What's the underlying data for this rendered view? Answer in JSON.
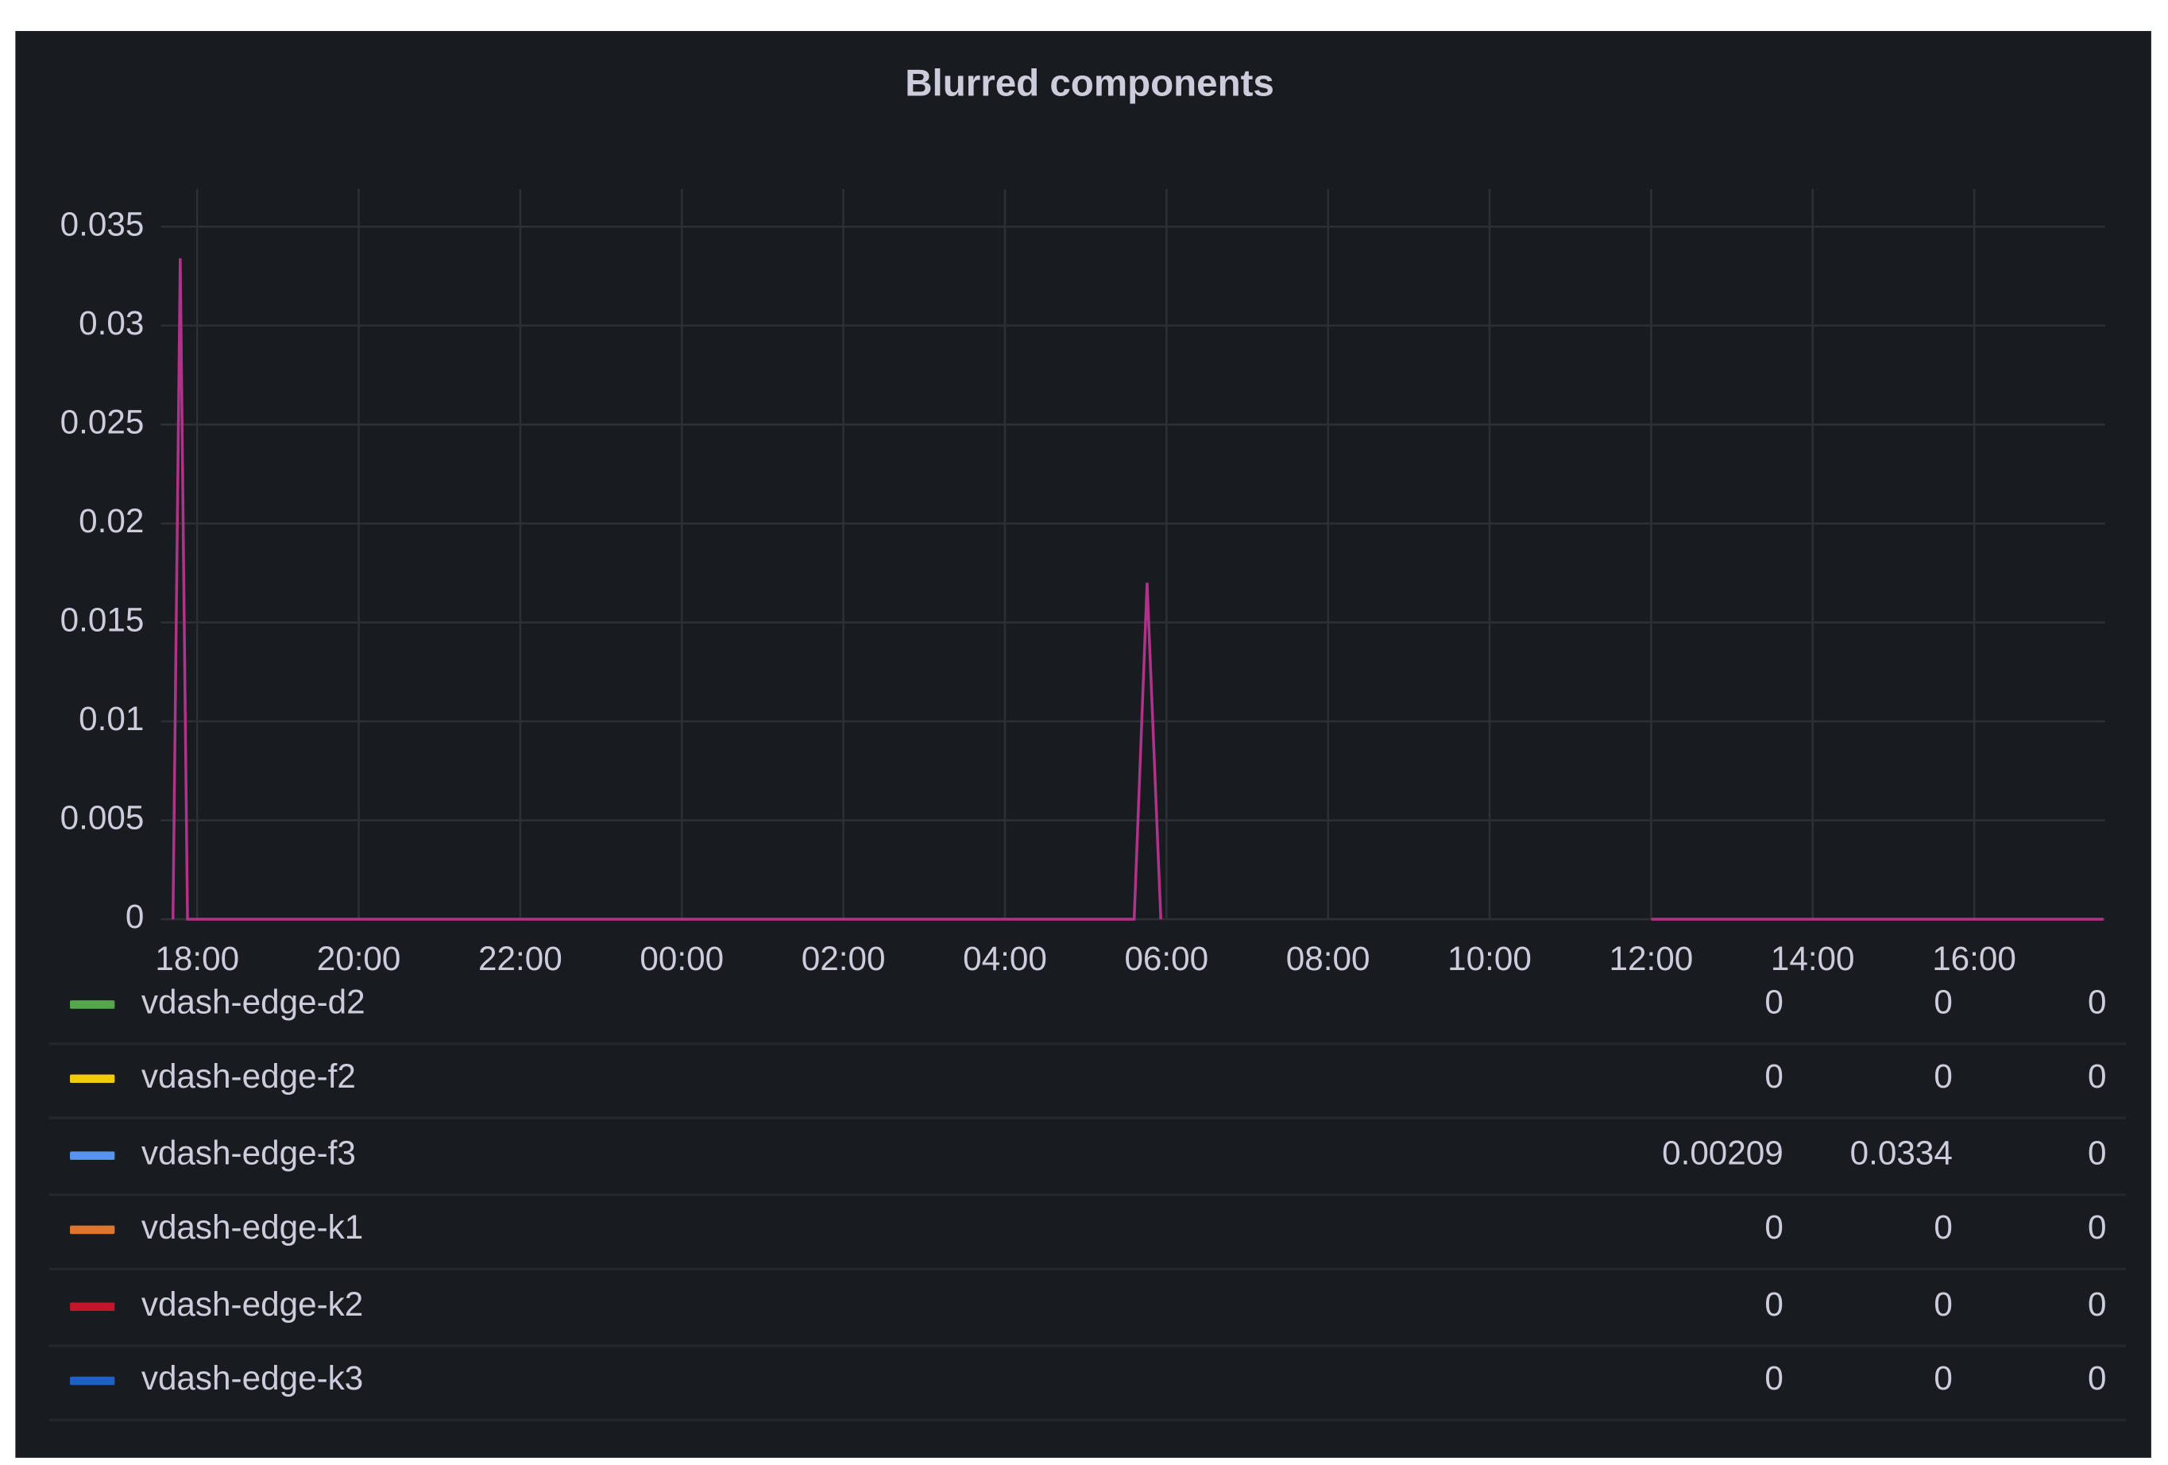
{
  "chart_data": {
    "type": "line",
    "title": "Blurred components",
    "x": [
      -0.3,
      -0.21,
      -0.12,
      11.6,
      11.76,
      11.93,
      15,
      18.0,
      23.6
    ],
    "xlim": [
      -0.45,
      23.62
    ],
    "xticks": [
      {
        "value": 0,
        "label": "18:00"
      },
      {
        "value": 2,
        "label": "20:00"
      },
      {
        "value": 4,
        "label": "22:00"
      },
      {
        "value": 6,
        "label": "00:00"
      },
      {
        "value": 8,
        "label": "02:00"
      },
      {
        "value": 10,
        "label": "04:00"
      },
      {
        "value": 12,
        "label": "06:00"
      },
      {
        "value": 14,
        "label": "08:00"
      },
      {
        "value": 16,
        "label": "10:00"
      },
      {
        "value": 18,
        "label": "12:00"
      },
      {
        "value": 20,
        "label": "14:00"
      },
      {
        "value": 22,
        "label": "16:00"
      }
    ],
    "ylim": [
      0,
      0.0369
    ],
    "yticks": [
      0,
      0.005,
      0.01,
      0.015,
      0.02,
      0.025,
      0.03,
      0.035
    ],
    "grid": true,
    "series": [
      {
        "name": "vdash-edge-d2",
        "color": "#56a64b",
        "legend_values": [
          0,
          0,
          0
        ]
      },
      {
        "name": "vdash-edge-f2",
        "color": "#f2cc0c",
        "legend_values": [
          0,
          0,
          0
        ]
      },
      {
        "name": "vdash-edge-f3",
        "color": "#5794f2",
        "line_color": "#b0338a",
        "legend_values": [
          0.00209,
          0.0334,
          0
        ],
        "values": [
          0,
          0.0334,
          0,
          0,
          0.017,
          0,
          null,
          0,
          0
        ]
      },
      {
        "name": "vdash-edge-k1",
        "color": "#e0752d",
        "legend_values": [
          0,
          0,
          0
        ]
      },
      {
        "name": "vdash-edge-k2",
        "color": "#c4162a",
        "legend_values": [
          0,
          0,
          0
        ]
      },
      {
        "name": "vdash-edge-k3",
        "color": "#1f60c4",
        "legend_values": [
          0,
          0,
          0
        ]
      }
    ]
  }
}
